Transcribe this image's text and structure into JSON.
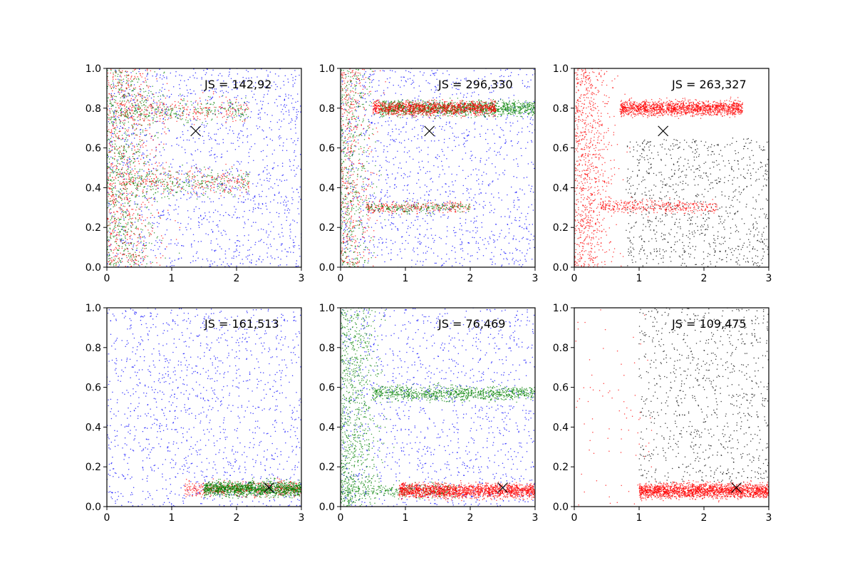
{
  "chart_data": [
    {
      "type": "scatter",
      "annotation": "JS = 142,92",
      "xlim": [
        0,
        3
      ],
      "ylim": [
        0,
        1
      ],
      "x_ticks": [
        "0",
        "1",
        "2",
        "3"
      ],
      "y_ticks": [
        "0.0",
        "0.2",
        "0.4",
        "0.6",
        "0.8",
        "1.0"
      ],
      "marker": {
        "x": 1.37,
        "y": 0.685
      },
      "clusters": [
        {
          "color": "#0000ff",
          "n": 1400,
          "x": [
            0,
            3
          ],
          "y": [
            0,
            1
          ],
          "dist": "uniform"
        },
        {
          "color": "#ff0000",
          "n": 700,
          "x": [
            0,
            1.7
          ],
          "y": [
            0,
            1
          ],
          "dist": "decay",
          "scale": 0.6
        },
        {
          "color": "#008000",
          "n": 700,
          "x": [
            0,
            1.7
          ],
          "y": [
            0,
            1
          ],
          "dist": "decay",
          "scale": 0.6
        },
        {
          "color": "#ff0000",
          "n": 250,
          "x": [
            0.2,
            2.2
          ],
          "y": [
            0.72,
            0.86
          ],
          "dist": "band"
        },
        {
          "color": "#008000",
          "n": 250,
          "x": [
            0.2,
            2.2
          ],
          "y": [
            0.72,
            0.86
          ],
          "dist": "band"
        },
        {
          "color": "#ff0000",
          "n": 250,
          "x": [
            0.2,
            2.2
          ],
          "y": [
            0.36,
            0.5
          ],
          "dist": "band"
        },
        {
          "color": "#008000",
          "n": 250,
          "x": [
            0.2,
            2.2
          ],
          "y": [
            0.36,
            0.5
          ],
          "dist": "band"
        }
      ]
    },
    {
      "type": "scatter",
      "annotation": "JS = 296,330",
      "xlim": [
        0,
        3
      ],
      "ylim": [
        0,
        1
      ],
      "x_ticks": [
        "0",
        "1",
        "2",
        "3"
      ],
      "y_ticks": [
        "0.0",
        "0.2",
        "0.4",
        "0.6",
        "0.8",
        "1.0"
      ],
      "marker": {
        "x": 1.37,
        "y": 0.685
      },
      "clusters": [
        {
          "color": "#0000ff",
          "n": 1300,
          "x": [
            0,
            3
          ],
          "y": [
            0,
            1
          ],
          "dist": "uniform"
        },
        {
          "color": "#ff0000",
          "n": 450,
          "x": [
            0,
            1.2
          ],
          "y": [
            0,
            1
          ],
          "dist": "decay",
          "scale": 0.4
        },
        {
          "color": "#008000",
          "n": 450,
          "x": [
            0,
            1.2
          ],
          "y": [
            0,
            1
          ],
          "dist": "decay",
          "scale": 0.4
        },
        {
          "color": "#008000",
          "n": 1300,
          "x": [
            0.6,
            3
          ],
          "y": [
            0.76,
            0.84
          ],
          "dist": "band"
        },
        {
          "color": "#ff0000",
          "n": 1100,
          "x": [
            0.5,
            2.4
          ],
          "y": [
            0.76,
            0.84
          ],
          "dist": "band"
        },
        {
          "color": "#ff0000",
          "n": 250,
          "x": [
            0.4,
            2.0
          ],
          "y": [
            0.27,
            0.33
          ],
          "dist": "band"
        },
        {
          "color": "#008000",
          "n": 200,
          "x": [
            0.4,
            2.0
          ],
          "y": [
            0.27,
            0.33
          ],
          "dist": "band"
        }
      ]
    },
    {
      "type": "scatter",
      "annotation": "JS = 263,327",
      "xlim": [
        0,
        3
      ],
      "ylim": [
        0,
        1
      ],
      "x_ticks": [
        "0",
        "1",
        "2",
        "3"
      ],
      "y_ticks": [
        "0.0",
        "0.2",
        "0.4",
        "0.6",
        "0.8",
        "1.0"
      ],
      "marker": {
        "x": 1.37,
        "y": 0.685
      },
      "clusters": [
        {
          "color": "#000000",
          "n": 900,
          "x": [
            0.8,
            3
          ],
          "y": [
            0,
            0.65
          ],
          "dist": "uniform"
        },
        {
          "color": "#ff0000",
          "n": 900,
          "x": [
            0,
            1.3
          ],
          "y": [
            0,
            1
          ],
          "dist": "decay",
          "scale": 0.45
        },
        {
          "color": "#ff0000",
          "n": 1500,
          "x": [
            0.7,
            2.6
          ],
          "y": [
            0.76,
            0.84
          ],
          "dist": "band"
        },
        {
          "color": "#ff0000",
          "n": 350,
          "x": [
            0.4,
            2.2
          ],
          "y": [
            0.27,
            0.34
          ],
          "dist": "band"
        }
      ]
    },
    {
      "type": "scatter",
      "annotation": "JS = 161,513",
      "xlim": [
        0,
        3
      ],
      "ylim": [
        0,
        1
      ],
      "x_ticks": [
        "0",
        "1",
        "2",
        "3"
      ],
      "y_ticks": [
        "0.0",
        "0.2",
        "0.4",
        "0.6",
        "0.8",
        "1.0"
      ],
      "marker": {
        "x": 2.5,
        "y": 0.095
      },
      "clusters": [
        {
          "color": "#0000ff",
          "n": 1300,
          "x": [
            0,
            3
          ],
          "y": [
            0,
            1
          ],
          "dist": "uniform"
        },
        {
          "color": "#ff0000",
          "n": 500,
          "x": [
            1.2,
            3
          ],
          "y": [
            0.05,
            0.13
          ],
          "dist": "band"
        },
        {
          "color": "#008000",
          "n": 1300,
          "x": [
            1.5,
            3
          ],
          "y": [
            0.05,
            0.13
          ],
          "dist": "band"
        }
      ]
    },
    {
      "type": "scatter",
      "annotation": "JS = 76,469",
      "xlim": [
        0,
        3
      ],
      "ylim": [
        0,
        1
      ],
      "x_ticks": [
        "0",
        "1",
        "2",
        "3"
      ],
      "y_ticks": [
        "0.0",
        "0.2",
        "0.4",
        "0.6",
        "0.8",
        "1.0"
      ],
      "marker": {
        "x": 2.5,
        "y": 0.095
      },
      "clusters": [
        {
          "color": "#0000ff",
          "n": 1200,
          "x": [
            0,
            3
          ],
          "y": [
            0,
            1
          ],
          "dist": "uniform"
        },
        {
          "color": "#008000",
          "n": 900,
          "x": [
            0,
            1.2
          ],
          "y": [
            0,
            1
          ],
          "dist": "decay",
          "scale": 0.45
        },
        {
          "color": "#008000",
          "n": 900,
          "x": [
            0.5,
            3
          ],
          "y": [
            0.53,
            0.61
          ],
          "dist": "band"
        },
        {
          "color": "#008000",
          "n": 300,
          "x": [
            0,
            1.8
          ],
          "y": [
            0.04,
            0.12
          ],
          "dist": "band"
        },
        {
          "color": "#ff0000",
          "n": 1700,
          "x": [
            0.9,
            3
          ],
          "y": [
            0.04,
            0.12
          ],
          "dist": "band"
        }
      ]
    },
    {
      "type": "scatter",
      "annotation": "JS = 109,475",
      "xlim": [
        0,
        3
      ],
      "ylim": [
        0,
        1
      ],
      "x_ticks": [
        "0",
        "1",
        "2",
        "3"
      ],
      "y_ticks": [
        "0.0",
        "0.2",
        "0.4",
        "0.6",
        "0.8",
        "1.0"
      ],
      "marker": {
        "x": 2.5,
        "y": 0.095
      },
      "clusters": [
        {
          "color": "#000000",
          "n": 850,
          "x": [
            1.0,
            3
          ],
          "y": [
            0.12,
            1
          ],
          "dist": "uniform"
        },
        {
          "color": "#ff0000",
          "n": 80,
          "x": [
            0,
            1.2
          ],
          "y": [
            0,
            1
          ],
          "dist": "uniform"
        },
        {
          "color": "#ff0000",
          "n": 1900,
          "x": [
            1.0,
            3
          ],
          "y": [
            0.04,
            0.12
          ],
          "dist": "band"
        }
      ]
    }
  ]
}
